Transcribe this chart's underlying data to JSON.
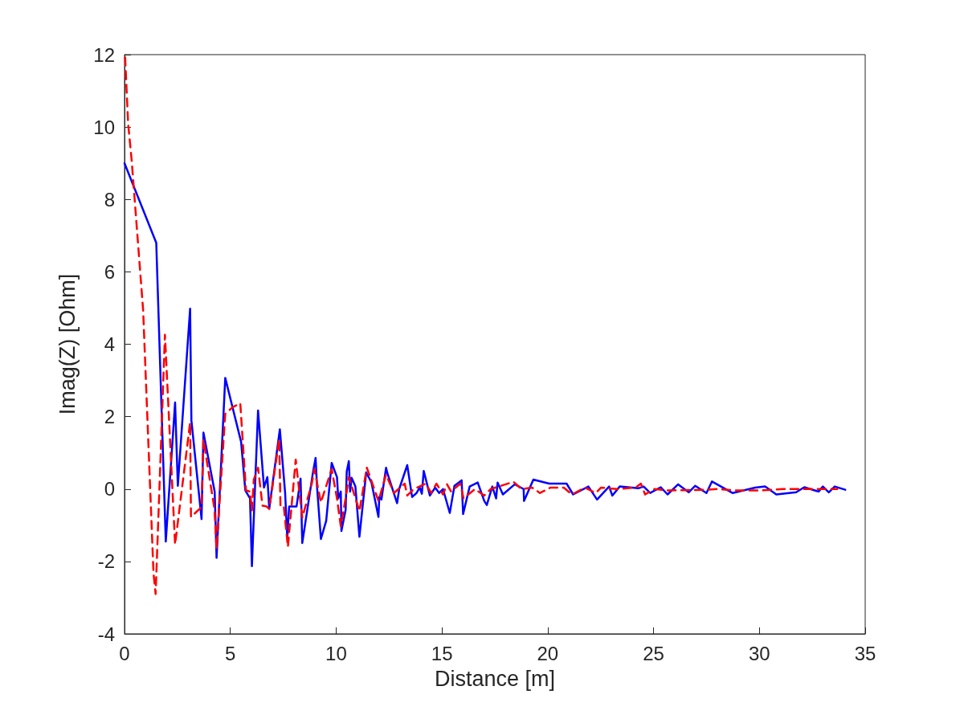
{
  "chart_data": {
    "type": "line",
    "xlabel": "Distance [m]",
    "ylabel": "Imag(Z) [Ohm]",
    "xlim": [
      0,
      35
    ],
    "xticks": [
      0,
      5,
      10,
      15,
      20,
      25,
      30,
      35
    ],
    "ylim": [
      -4,
      12
    ],
    "yticks": [
      -4,
      -2,
      0,
      2,
      4,
      6,
      8,
      10,
      12
    ],
    "grid": false,
    "marker": "none",
    "series": [
      {
        "color": "#0000ff",
        "line_style": "solid",
        "x": [
          0,
          1.5,
          1.95,
          2.39,
          2.52,
          3.1,
          3.16,
          3.64,
          3.73,
          4.26,
          4.35,
          4.76,
          5.51,
          5.71,
          5.93,
          6.02,
          6.31,
          6.59,
          6.75,
          6.84,
          7.34,
          7.59,
          7.69,
          7.78,
          8.13,
          8.32,
          8.4,
          8.91,
          9.03,
          9.1,
          9.28,
          9.53,
          9.79,
          10.04,
          10.1,
          10.22,
          10.25,
          10.45,
          10.5,
          10.6,
          10.66,
          10.73,
          10.91,
          11.1,
          11.42,
          11.67,
          12.0,
          12.04,
          12.14,
          12.36,
          12.42,
          12.88,
          12.98,
          13.36,
          13.59,
          13.8,
          13.95,
          14.05,
          14.14,
          14.43,
          14.68,
          14.87,
          15.05,
          15.37,
          15.59,
          15.93,
          16.0,
          16.31,
          16.69,
          17.0,
          17.12,
          17.38,
          17.56,
          17.63,
          17.88,
          18.44,
          18.86,
          18.88,
          19.32,
          20.07,
          20.89,
          21.2,
          21.92,
          22.33,
          22.9,
          23.05,
          23.4,
          24.28,
          24.53,
          24.84,
          25.34,
          25.66,
          26.16,
          26.66,
          26.97,
          27.5,
          27.76,
          28.73,
          29.8,
          30.27,
          30.8,
          31.74,
          32.12,
          32.8,
          33.0,
          33.28,
          33.56,
          34.06
        ],
        "values": [
          9.0,
          6.8,
          -1.45,
          2.39,
          0.09,
          4.98,
          1.9,
          -0.83,
          1.56,
          -0.07,
          -1.9,
          3.07,
          1.3,
          -0.04,
          -0.26,
          -2.13,
          2.17,
          0.04,
          0.33,
          -0.54,
          1.65,
          -0.11,
          -1.34,
          -0.48,
          -0.48,
          0.29,
          -1.49,
          0.48,
          0.86,
          0.04,
          -1.38,
          -0.88,
          0.72,
          0.33,
          -0.26,
          -0.07,
          -1.16,
          -0.57,
          0.48,
          0.77,
          -0.07,
          0.31,
          0.07,
          -1.32,
          0.46,
          0.18,
          -0.77,
          -0.22,
          -0.29,
          0.59,
          0.44,
          -0.39,
          0,
          0.66,
          -0.22,
          -0.11,
          0.04,
          -0.13,
          0.5,
          -0.18,
          0.04,
          -0.11,
          0,
          -0.66,
          0.09,
          0.24,
          -0.69,
          0.07,
          0.18,
          -0.33,
          -0.44,
          0.07,
          -0.26,
          0.18,
          -0.15,
          0.13,
          0,
          -0.33,
          0.26,
          0.15,
          0.15,
          -0.15,
          0.07,
          -0.29,
          0.07,
          -0.18,
          0.07,
          0.02,
          0.07,
          -0.11,
          0.05,
          -0.15,
          0.13,
          -0.09,
          0.09,
          -0.11,
          0.21,
          -0.11,
          0.04,
          0.07,
          -0.15,
          -0.09,
          0.05,
          -0.07,
          0.07,
          -0.09,
          0.07,
          -0.02
        ]
      },
      {
        "color": "#ff0000",
        "line_style": "dashed",
        "x": [
          0.03,
          0.17,
          0.34,
          0.88,
          1.37,
          1.47,
          1.91,
          2.39,
          3.1,
          3.14,
          3.64,
          3.73,
          4.25,
          4.35,
          4.76,
          5.11,
          5.47,
          5.74,
          5.93,
          6.02,
          6.11,
          6.31,
          6.52,
          6.71,
          6.84,
          7.31,
          7.37,
          7.53,
          7.72,
          8.09,
          8.4,
          8.85,
          8.97,
          9.28,
          9.79,
          10.04,
          10.22,
          10.48,
          10.6,
          11.1,
          11.45,
          12.0,
          12.36,
          12.73,
          13.24,
          13.36,
          13.67,
          14.24,
          14.49,
          14.74,
          15.05,
          15.24,
          15.43,
          15.87,
          16.02,
          16.56,
          17.0,
          17.31,
          18.38,
          18.76,
          19.26,
          19.63,
          20.13,
          20.76,
          21.14,
          21.76,
          22.27,
          22.52,
          23.27,
          24.15,
          24.4,
          24.6,
          25.04,
          25.66,
          27.41,
          28.04,
          28.92,
          30.05,
          31.11,
          33.18,
          33.68
        ],
        "values": [
          11.92,
          10.1,
          9.07,
          4.94,
          -2.33,
          -2.9,
          4.26,
          -1.53,
          1.84,
          -0.77,
          -0.5,
          1.36,
          -0.55,
          -1.65,
          2.08,
          2.26,
          2.37,
          -0.04,
          -0.07,
          -0.59,
          0.26,
          0.59,
          -0.46,
          -0.48,
          -0.55,
          1.38,
          -0.5,
          -0.5,
          -1.6,
          0.81,
          -0.79,
          0.15,
          0.55,
          -0.37,
          0.55,
          -0.26,
          -1.03,
          -0.15,
          0.33,
          -0.61,
          0.59,
          -0.33,
          0.4,
          -0.11,
          0.15,
          -0.18,
          0,
          0.15,
          -0.11,
          0.15,
          -0.15,
          0.13,
          -0.07,
          0.15,
          -0.26,
          0,
          -0.18,
          0,
          0.2,
          0,
          0.04,
          -0.11,
          0.04,
          0.04,
          -0.15,
          0.04,
          -0.11,
          0.04,
          0,
          0.04,
          0.15,
          -0.15,
          0,
          -0.04,
          -0.02,
          0,
          -0.04,
          -0.04,
          0,
          0,
          0
        ]
      }
    ]
  }
}
